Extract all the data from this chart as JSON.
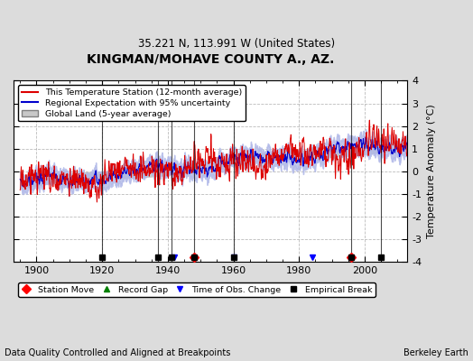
{
  "title": "KINGMAN/MOHAVE COUNTY A., AZ.",
  "subtitle": "35.221 N, 113.991 W (United States)",
  "ylabel": "Temperature Anomaly (°C)",
  "xlabel_bottom": "Data Quality Controlled and Aligned at Breakpoints",
  "credit": "Berkeley Earth",
  "year_start": 1895,
  "year_end": 2012,
  "ylim": [
    -4,
    4
  ],
  "xlim": [
    1893,
    2013
  ],
  "background_color": "#dcdcdc",
  "plot_bg_color": "#ffffff",
  "red_line_color": "#dd0000",
  "blue_line_color": "#0000cc",
  "blue_band_color": "#b0b8e8",
  "gray_band_color": "#c8c8c8",
  "grid_color": "#aaaaaa",
  "station_move_years": [
    1948,
    1996
  ],
  "record_gap_years": [],
  "obs_change_years": [
    1942,
    1960,
    1984
  ],
  "empirical_break_years": [
    1920,
    1937,
    1941,
    1948,
    1960,
    1996,
    2005
  ],
  "xticks": [
    1900,
    1920,
    1940,
    1960,
    1980,
    2000
  ],
  "yticks": [
    -4,
    -3,
    -2,
    -1,
    0,
    1,
    2,
    3,
    4
  ]
}
